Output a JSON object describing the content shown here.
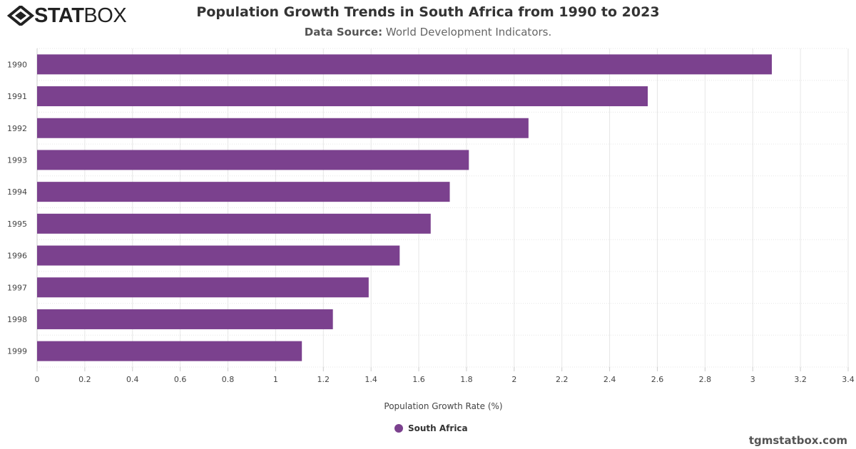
{
  "logo": {
    "bold": "STAT",
    "light": "BOX"
  },
  "header": {
    "title": "Population Growth Trends in South Africa from 1990 to 2023",
    "source_label": "Data Source:",
    "source_value": "World Development Indicators."
  },
  "credit": "tgmstatbox.com",
  "colors": {
    "bar": "#7b418e"
  },
  "chart_data": {
    "type": "bar",
    "orientation": "horizontal",
    "title": "Population Growth Trends in South Africa from 1990 to 2023",
    "categories": [
      "1990",
      "1991",
      "1992",
      "1993",
      "1994",
      "1995",
      "1996",
      "1997",
      "1998",
      "1999"
    ],
    "series": [
      {
        "name": "South Africa",
        "values": [
          3.08,
          2.56,
          2.06,
          1.81,
          1.73,
          1.65,
          1.52,
          1.39,
          1.24,
          1.11
        ]
      }
    ],
    "xlabel": "Population Growth Rate (%)",
    "ylabel": "",
    "xlim": [
      0,
      3.4
    ],
    "xticks": [
      "0",
      "0.2",
      "0.4",
      "0.6",
      "0.8",
      "1",
      "1.2",
      "1.4",
      "1.6",
      "1.8",
      "2",
      "2.2",
      "2.4",
      "2.6",
      "2.8",
      "3",
      "3.2",
      "3.4"
    ],
    "grid": true,
    "legend": "bottom-center"
  }
}
